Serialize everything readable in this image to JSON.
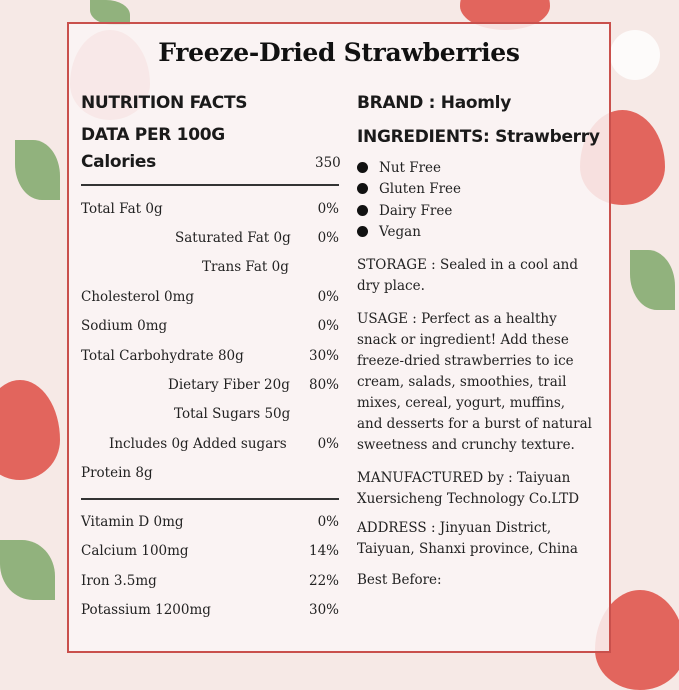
{
  "title": "Freeze-Dried Strawberries",
  "nutrition": {
    "heading": "NUTRITION FACTS",
    "per": "DATA PER 100G",
    "calories_label": "Calories",
    "calories_value": "350",
    "rows": [
      {
        "name": "Total Fat 0g",
        "value": "0%"
      },
      {
        "name": "Saturated Fat 0g",
        "value": "0%"
      },
      {
        "name": "Trans Fat 0g",
        "value": ""
      },
      {
        "name": "Cholesterol 0mg",
        "value": "0%"
      },
      {
        "name": "Sodium 0mg",
        "value": "0%"
      },
      {
        "name": "Total Carbohydrate 80g",
        "value": "30%"
      },
      {
        "name": "Dietary Fiber 20g",
        "value": "80%"
      },
      {
        "name": "Total Sugars 50g",
        "value": ""
      },
      {
        "name": "Includes 0g Added sugars",
        "value": "0%"
      },
      {
        "name": "Protein 8g",
        "value": ""
      }
    ],
    "minerals": [
      {
        "name": "Vitamin D 0mg",
        "value": "0%"
      },
      {
        "name": "Calcium 100mg",
        "value": "14%"
      },
      {
        "name": "Iron 3.5mg",
        "value": "22%"
      },
      {
        "name": "Potassium 1200mg",
        "value": "30%"
      }
    ]
  },
  "info": {
    "brand": "BRAND : Haomly",
    "ingredients": "INGREDIENTS: Strawberry",
    "claims": [
      "Nut Free",
      "Gluten Free",
      "Dairy Free",
      "Vegan"
    ],
    "storage": [
      "STORAGE : Sealed in a cool and",
      "dry place."
    ],
    "usage": [
      "USAGE : Perfect as a healthy",
      "snack or ingredient! Add these",
      "freeze-dried strawberries to ice",
      "cream, salads, smoothies, trail",
      "mixes, cereal, yogurt, muffins,",
      "and desserts for a burst of natural",
      "sweetness and crunchy texture."
    ],
    "manufactured": [
      "MANUFACTURED by : Taiyuan",
      "Xuersicheng Technology Co.LTD"
    ],
    "address": [
      "ADDRESS : Jinyuan District,",
      "Taiyuan, Shanxi province, China"
    ],
    "best_before": "Best Before:"
  },
  "colors": {
    "border": "#c9504c",
    "strawberry": "#e0564e",
    "leaf": "#7fa86a",
    "background": "#f6e9e6"
  }
}
